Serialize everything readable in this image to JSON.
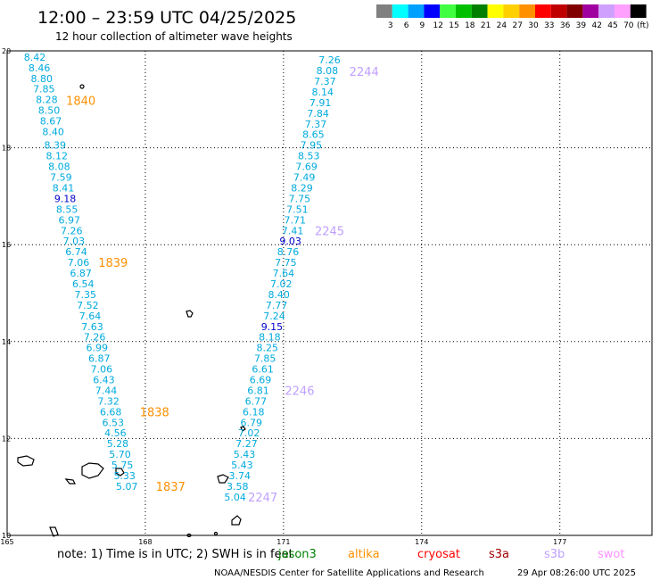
{
  "header": {
    "title": "12:00 – 23:59 UTC 04/25/2025",
    "subtitle": "12 hour collection of altimeter wave heights"
  },
  "legend": {
    "unit": "(ft)",
    "bins": [
      {
        "label": "3",
        "color": "#808080"
      },
      {
        "label": "6",
        "color": "#00ffff"
      },
      {
        "label": "9",
        "color": "#00a0ff"
      },
      {
        "label": "12",
        "color": "#0000ff"
      },
      {
        "label": "15",
        "color": "#40ff40"
      },
      {
        "label": "18",
        "color": "#00c000"
      },
      {
        "label": "21",
        "color": "#008000"
      },
      {
        "label": "24",
        "color": "#ffff00"
      },
      {
        "label": "27",
        "color": "#ffd000"
      },
      {
        "label": "30",
        "color": "#ff9000"
      },
      {
        "label": "33",
        "color": "#ff0000"
      },
      {
        "label": "36",
        "color": "#c00000"
      },
      {
        "label": "39",
        "color": "#800000"
      },
      {
        "label": "42",
        "color": "#a000a0"
      },
      {
        "label": "45",
        "color": "#d0a0ff"
      },
      {
        "label": "70",
        "color": "#ffa0ff"
      },
      {
        "label": "",
        "color": "#000000"
      }
    ]
  },
  "map": {
    "lon_range": [
      165,
      179
    ],
    "lat_range": [
      10,
      20
    ],
    "lon_ticks": [
      "165",
      "168",
      "171",
      "174",
      "177"
    ],
    "lat_ticks": [
      "20",
      "18",
      "16",
      "14",
      "12",
      "10"
    ]
  },
  "colors": {
    "wave_cyan": "#00aadd",
    "wave_blue": "#0000cc",
    "jason": "#008000",
    "altika": "#ff9000",
    "cryosat": "#ff0000",
    "s3a": "#a00000",
    "s3b": "#c0a0ff",
    "swot": "#ff90ff"
  },
  "tracks": [
    {
      "id": "1840",
      "points": [
        {
          "lon": 165.6,
          "lat": 19.8,
          "v": "8.42"
        },
        {
          "lon": 165.7,
          "lat": 19.58,
          "v": "8.46"
        },
        {
          "lon": 165.75,
          "lat": 19.36,
          "v": "8.80"
        },
        {
          "lon": 165.8,
          "lat": 19.14,
          "v": "7.85"
        },
        {
          "lon": 165.86,
          "lat": 18.92,
          "v": "8.28"
        },
        {
          "lon": 165.91,
          "lat": 18.7,
          "v": "8.50"
        },
        {
          "lon": 165.95,
          "lat": 18.48,
          "v": "8.67"
        },
        {
          "lon": 166.0,
          "lat": 18.26,
          "v": "8.40"
        },
        {
          "lon": 166.04,
          "lat": 17.98,
          "v": "8.39"
        },
        {
          "lon": 166.08,
          "lat": 17.76,
          "v": "8.12"
        },
        {
          "lon": 166.13,
          "lat": 17.54,
          "v": "8.08"
        },
        {
          "lon": 166.17,
          "lat": 17.32,
          "v": "7.59"
        },
        {
          "lon": 166.22,
          "lat": 17.1,
          "v": "8.41"
        },
        {
          "lon": 166.26,
          "lat": 16.88,
          "v": "9.18"
        },
        {
          "lon": 166.3,
          "lat": 16.66,
          "v": "8.55"
        }
      ]
    },
    {
      "id": "1839",
      "points": [
        {
          "lon": 166.35,
          "lat": 16.44,
          "v": "6.97"
        },
        {
          "lon": 166.4,
          "lat": 16.22,
          "v": "7.26"
        },
        {
          "lon": 166.45,
          "lat": 16.0,
          "v": "7.03"
        },
        {
          "lon": 166.5,
          "lat": 15.78,
          "v": "6.74"
        },
        {
          "lon": 166.55,
          "lat": 15.56,
          "v": "7.06"
        },
        {
          "lon": 166.6,
          "lat": 15.34,
          "v": "6.87"
        },
        {
          "lon": 166.65,
          "lat": 15.12,
          "v": "6.54"
        },
        {
          "lon": 166.7,
          "lat": 14.9,
          "v": "7.35"
        },
        {
          "lon": 166.75,
          "lat": 14.68,
          "v": "7.52"
        },
        {
          "lon": 166.8,
          "lat": 14.46,
          "v": "7.64"
        },
        {
          "lon": 166.85,
          "lat": 14.24,
          "v": "7.63"
        },
        {
          "lon": 166.9,
          "lat": 14.02,
          "v": "7.26"
        },
        {
          "lon": 166.95,
          "lat": 13.8,
          "v": "6.99"
        },
        {
          "lon": 167.0,
          "lat": 13.58,
          "v": "6.87"
        },
        {
          "lon": 167.05,
          "lat": 13.36,
          "v": "7.06"
        },
        {
          "lon": 167.1,
          "lat": 13.14,
          "v": "6.43"
        },
        {
          "lon": 167.15,
          "lat": 12.92,
          "v": "7.44"
        }
      ]
    },
    {
      "id": "1838",
      "points": [
        {
          "lon": 167.2,
          "lat": 12.7,
          "v": "7.32"
        },
        {
          "lon": 167.25,
          "lat": 12.48,
          "v": "6.68"
        },
        {
          "lon": 167.3,
          "lat": 12.26,
          "v": "6.53"
        },
        {
          "lon": 167.35,
          "lat": 12.04,
          "v": "4.56"
        },
        {
          "lon": 167.4,
          "lat": 11.82,
          "v": "5.28"
        },
        {
          "lon": 167.45,
          "lat": 11.6,
          "v": "5.70"
        },
        {
          "lon": 167.5,
          "lat": 11.38,
          "v": "5.75"
        },
        {
          "lon": 167.55,
          "lat": 11.16,
          "v": "5.33"
        }
      ]
    },
    {
      "id": "1837",
      "points": [
        {
          "lon": 167.6,
          "lat": 10.94,
          "v": "5.07"
        }
      ]
    },
    {
      "id": "2244",
      "points": [
        {
          "lon": 172.0,
          "lat": 19.74,
          "v": "7.26"
        },
        {
          "lon": 171.95,
          "lat": 19.52,
          "v": "8.08"
        },
        {
          "lon": 171.9,
          "lat": 19.3,
          "v": "7.37"
        },
        {
          "lon": 171.85,
          "lat": 19.08,
          "v": "8.14"
        },
        {
          "lon": 171.8,
          "lat": 18.86,
          "v": "7.91"
        },
        {
          "lon": 171.75,
          "lat": 18.64,
          "v": "7.84"
        },
        {
          "lon": 171.7,
          "lat": 18.42,
          "v": "7.37"
        },
        {
          "lon": 171.65,
          "lat": 18.2,
          "v": "8.65"
        },
        {
          "lon": 171.6,
          "lat": 17.98,
          "v": "7.95"
        },
        {
          "lon": 171.55,
          "lat": 17.76,
          "v": "8.53"
        },
        {
          "lon": 171.5,
          "lat": 17.54,
          "v": "7.69"
        },
        {
          "lon": 171.45,
          "lat": 17.32,
          "v": "7.49"
        },
        {
          "lon": 171.4,
          "lat": 17.1,
          "v": "8.29"
        },
        {
          "lon": 171.35,
          "lat": 16.88,
          "v": "7.75"
        },
        {
          "lon": 171.3,
          "lat": 16.66,
          "v": "7.51"
        },
        {
          "lon": 171.25,
          "lat": 16.44,
          "v": "7.71"
        },
        {
          "lon": 171.2,
          "lat": 16.22,
          "v": "7.41"
        }
      ]
    },
    {
      "id": "2245",
      "points": [
        {
          "lon": 171.15,
          "lat": 16.0,
          "v": "9.03"
        },
        {
          "lon": 171.1,
          "lat": 15.78,
          "v": "8.76"
        },
        {
          "lon": 171.05,
          "lat": 15.56,
          "v": "7.75"
        },
        {
          "lon": 171.0,
          "lat": 15.34,
          "v": "7.64"
        },
        {
          "lon": 170.95,
          "lat": 15.12,
          "v": "7.02"
        },
        {
          "lon": 170.9,
          "lat": 14.9,
          "v": "8.40"
        },
        {
          "lon": 170.85,
          "lat": 14.68,
          "v": "7.77"
        },
        {
          "lon": 170.8,
          "lat": 14.46,
          "v": "7.24"
        },
        {
          "lon": 170.75,
          "lat": 14.24,
          "v": "9.15"
        },
        {
          "lon": 170.7,
          "lat": 14.02,
          "v": "8.18"
        },
        {
          "lon": 170.65,
          "lat": 13.8,
          "v": "8.25"
        },
        {
          "lon": 170.6,
          "lat": 13.58,
          "v": "7.85"
        },
        {
          "lon": 170.55,
          "lat": 13.36,
          "v": "6.61"
        },
        {
          "lon": 170.5,
          "lat": 13.14,
          "v": "6.69"
        },
        {
          "lon": 170.45,
          "lat": 12.92,
          "v": "6.81"
        }
      ]
    },
    {
      "id": "2246",
      "points": [
        {
          "lon": 170.4,
          "lat": 12.7,
          "v": "6.77"
        },
        {
          "lon": 170.35,
          "lat": 12.48,
          "v": "6.18"
        },
        {
          "lon": 170.3,
          "lat": 12.26,
          "v": "6.79"
        },
        {
          "lon": 170.25,
          "lat": 12.04,
          "v": "7.02"
        },
        {
          "lon": 170.2,
          "lat": 11.82,
          "v": "7.27"
        },
        {
          "lon": 170.15,
          "lat": 11.6,
          "v": "5.43"
        },
        {
          "lon": 170.1,
          "lat": 11.38,
          "v": "5.43"
        },
        {
          "lon": 170.05,
          "lat": 11.16,
          "v": "3.74"
        },
        {
          "lon": 170.0,
          "lat": 10.94,
          "v": "3.58"
        },
        {
          "lon": 169.95,
          "lat": 10.72,
          "v": "5.04"
        }
      ]
    }
  ],
  "pass_labels": [
    {
      "text": "1840",
      "lon": 166.6,
      "lat": 18.9,
      "color": "#ff9000"
    },
    {
      "text": "1839",
      "lon": 167.3,
      "lat": 15.56,
      "color": "#ff9000"
    },
    {
      "text": "1838",
      "lon": 168.2,
      "lat": 12.48,
      "color": "#ff9000"
    },
    {
      "text": "1837",
      "lon": 168.55,
      "lat": 10.94,
      "color": "#ff9000"
    },
    {
      "text": "2244",
      "lon": 172.75,
      "lat": 19.5,
      "color": "#c0a0ff"
    },
    {
      "text": "2245",
      "lon": 172.0,
      "lat": 16.22,
      "color": "#c0a0ff"
    },
    {
      "text": "2246",
      "lon": 171.35,
      "lat": 12.92,
      "color": "#c0a0ff"
    },
    {
      "text": "2247",
      "lon": 170.55,
      "lat": 10.72,
      "color": "#c0a0ff"
    }
  ],
  "note": {
    "text": "note:  1) Time is in UTC;  2) SWH is in feet",
    "satellites": [
      {
        "name": "jason3",
        "color": "#008000"
      },
      {
        "name": "altika",
        "color": "#ff9000"
      },
      {
        "name": "cryosat",
        "color": "#ff0000"
      },
      {
        "name": "s3a",
        "color": "#a00000"
      },
      {
        "name": "s3b",
        "color": "#c0a0ff"
      },
      {
        "name": "swot",
        "color": "#ff90ff"
      }
    ]
  },
  "footer": {
    "source": "NOAA/NESDIS Center for Satellite Applications and Research",
    "timestamp": "29 Apr 08:26:00 UTC 2025"
  }
}
